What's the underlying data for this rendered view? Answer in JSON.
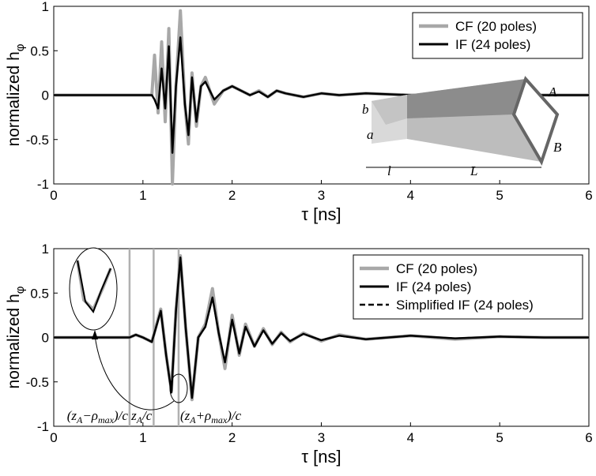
{
  "chart_data": [
    {
      "type": "line",
      "ylabel": "normalized h",
      "ylabel_sub": "φ",
      "xlabel": "τ  [ns]",
      "x": [
        0,
        1.1,
        1.13,
        1.17,
        1.21,
        1.25,
        1.29,
        1.33,
        1.37,
        1.42,
        1.47,
        1.51,
        1.55,
        1.6,
        1.65,
        1.7,
        1.75,
        1.8,
        1.9,
        2.0,
        2.1,
        2.2,
        2.3,
        2.4,
        2.5,
        2.6,
        2.8,
        3.0,
        3.2,
        3.5,
        4.0,
        4.5,
        5.0,
        6.0
      ],
      "series": [
        {
          "name": "CF  (20 poles)",
          "color": "#a8a8a8",
          "width": 4,
          "dash": false,
          "values": [
            0,
            0,
            0.45,
            -0.2,
            0.6,
            -0.3,
            0.75,
            -1.0,
            0.1,
            0.95,
            -0.1,
            -0.55,
            0.25,
            -0.35,
            0.1,
            0.2,
            0.05,
            -0.1,
            0.05,
            0.1,
            0.05,
            0,
            0.05,
            -0.02,
            0.05,
            0.02,
            -0.02,
            0.02,
            0,
            0.02,
            0,
            0,
            0,
            0
          ]
        },
        {
          "name": "IF  (24 poles)",
          "color": "#000000",
          "width": 2.5,
          "dash": false,
          "values": [
            0,
            0,
            -0.05,
            -0.15,
            0.3,
            -0.15,
            0.55,
            -0.65,
            0.1,
            0.65,
            -0.1,
            -0.45,
            0.2,
            -0.3,
            0.1,
            0.15,
            0.05,
            -0.05,
            0.05,
            0.1,
            0.05,
            0,
            0.04,
            -0.02,
            0.05,
            0.02,
            -0.02,
            0.02,
            0,
            0.02,
            0,
            0,
            0,
            0
          ]
        }
      ],
      "xlim": [
        0,
        6
      ],
      "xticks": [
        0,
        1,
        2,
        3,
        4,
        5,
        6
      ],
      "ylim": [
        -1,
        1
      ],
      "yticks": [
        -1,
        -0.5,
        0,
        0.5,
        1
      ],
      "legend": "upper right",
      "inset_labels": [
        "b",
        "a",
        "l",
        "L",
        "A",
        "B"
      ]
    },
    {
      "type": "line",
      "ylabel": "normalized h",
      "ylabel_sub": "φ",
      "xlabel": "τ  [ns]",
      "x": [
        0,
        0.85,
        0.92,
        1.0,
        1.1,
        1.2,
        1.26,
        1.32,
        1.37,
        1.42,
        1.48,
        1.55,
        1.62,
        1.7,
        1.78,
        1.85,
        1.92,
        2.0,
        2.08,
        2.15,
        2.25,
        2.35,
        2.45,
        2.55,
        2.65,
        2.8,
        3.0,
        3.2,
        3.5,
        4.0,
        4.5,
        5.0,
        5.5,
        6.0
      ],
      "series": [
        {
          "name": "CF (20 poles)",
          "color": "#a8a8a8",
          "width": 4,
          "dash": false,
          "values": [
            0,
            0,
            0.03,
            0,
            -0.05,
            0.32,
            -0.2,
            -0.6,
            0.3,
            0.92,
            0.1,
            -0.7,
            0.0,
            0.15,
            0.55,
            0.05,
            -0.35,
            0.25,
            -0.2,
            0.15,
            -0.1,
            0.1,
            -0.08,
            0.06,
            -0.05,
            0.05,
            -0.04,
            0.03,
            -0.02,
            0.02,
            -0.02,
            0.01,
            0,
            0
          ]
        },
        {
          "name": "IF (24 poles)",
          "color": "#000000",
          "width": 2.5,
          "dash": false,
          "values": [
            0,
            0,
            0.03,
            0,
            -0.05,
            0.3,
            -0.2,
            -0.62,
            0.3,
            0.9,
            0.1,
            -0.68,
            0.0,
            0.12,
            0.45,
            0.05,
            -0.28,
            0.2,
            -0.18,
            0.12,
            -0.1,
            0.08,
            -0.07,
            0.05,
            -0.04,
            0.04,
            -0.03,
            0.02,
            -0.02,
            0.02,
            -0.01,
            0.01,
            0,
            0
          ]
        },
        {
          "name": "Simplified IF (24 poles)",
          "color": "#000000",
          "width": 2,
          "dash": true,
          "values": [
            0,
            0,
            0.03,
            0,
            -0.05,
            0.3,
            -0.2,
            -0.62,
            0.3,
            0.9,
            0.1,
            -0.68,
            0.0,
            0.12,
            0.45,
            0.05,
            -0.28,
            0.2,
            -0.18,
            0.12,
            -0.1,
            0.08,
            -0.07,
            0.05,
            -0.04,
            0.04,
            -0.03,
            0.02,
            -0.02,
            0.02,
            -0.01,
            0.01,
            0,
            0
          ]
        }
      ],
      "xlim": [
        0,
        6
      ],
      "xticks": [
        0,
        1,
        2,
        3,
        4,
        5,
        6
      ],
      "ylim": [
        -1,
        1
      ],
      "yticks": [
        -1,
        -0.5,
        0,
        0.5,
        1
      ],
      "legend": "upper right",
      "vlines": [
        0.85,
        1.12,
        1.4
      ],
      "vline_color": "#b0b0b0",
      "annotations": [
        {
          "x": 0.85,
          "parts": [
            "(z",
            "A",
            "−ρ",
            "max",
            ")/c"
          ]
        },
        {
          "x": 1.12,
          "parts": [
            "z",
            "A",
            "/c"
          ]
        },
        {
          "x": 1.4,
          "parts": [
            "(z",
            "A",
            "+ρ",
            "max",
            ")/c"
          ]
        }
      ]
    }
  ]
}
